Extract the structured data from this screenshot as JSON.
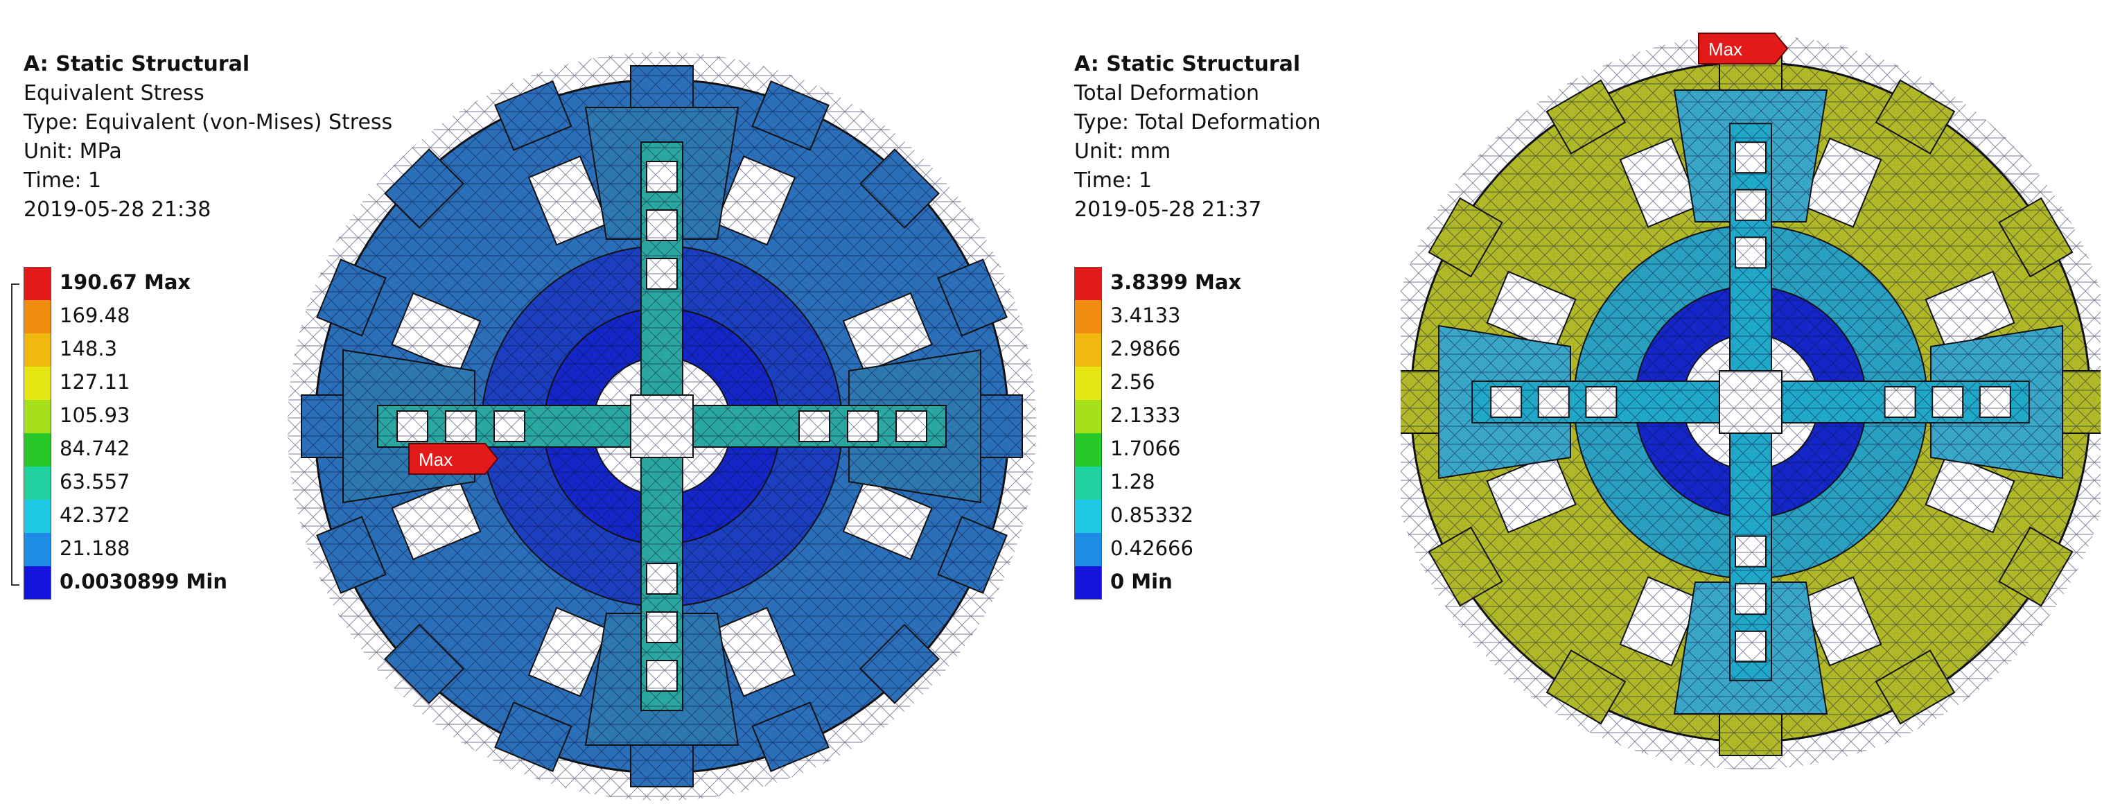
{
  "left": {
    "info": {
      "title": "A: Static Structural",
      "result": "Equivalent Stress",
      "type": "Type: Equivalent (von-Mises) Stress",
      "unit": "Unit: MPa",
      "time": "Time: 1",
      "timestamp": "2019-05-28 21:38"
    },
    "legend": [
      {
        "label": "190.67 Max",
        "color": "#e41a1a",
        "bold": true
      },
      {
        "label": "169.48",
        "color": "#f08c0e",
        "bold": false
      },
      {
        "label": "148.3",
        "color": "#f0b90e",
        "bold": false
      },
      {
        "label": "127.11",
        "color": "#e6e614",
        "bold": false
      },
      {
        "label": "105.93",
        "color": "#a6e01a",
        "bold": false
      },
      {
        "label": "84.742",
        "color": "#28c828",
        "bold": false
      },
      {
        "label": "63.557",
        "color": "#20d2a0",
        "bold": false
      },
      {
        "label": "42.372",
        "color": "#20c8e6",
        "bold": false
      },
      {
        "label": "21.188",
        "color": "#1e8ce6",
        "bold": false
      },
      {
        "label": "0.0030899 Min",
        "color": "#1414dc",
        "bold": true
      }
    ],
    "max_flag": "Max",
    "colors": {
      "outer": "#2a6fb8",
      "mid": "#1c3fbf",
      "inner": "#1526c8",
      "beam": "#2aa8a0"
    }
  },
  "right": {
    "info": {
      "title": "A: Static Structural",
      "result": "Total Deformation",
      "type": "Type: Total Deformation",
      "unit": "Unit: mm",
      "time": "Time: 1",
      "timestamp": "2019-05-28 21:37"
    },
    "legend": [
      {
        "label": "3.8399 Max",
        "color": "#e41a1a",
        "bold": true
      },
      {
        "label": "3.4133",
        "color": "#f08c0e",
        "bold": false
      },
      {
        "label": "2.9866",
        "color": "#f0b90e",
        "bold": false
      },
      {
        "label": "2.56",
        "color": "#e6e614",
        "bold": false
      },
      {
        "label": "2.1333",
        "color": "#a6e01a",
        "bold": false
      },
      {
        "label": "1.7066",
        "color": "#28c828",
        "bold": false
      },
      {
        "label": "1.28",
        "color": "#20d2a0",
        "bold": false
      },
      {
        "label": "0.85332",
        "color": "#20c8e6",
        "bold": false
      },
      {
        "label": "0.42666",
        "color": "#1e8ce6",
        "bold": false
      },
      {
        "label": "0 Min",
        "color": "#1414dc",
        "bold": true
      }
    ],
    "max_flag": "Max",
    "colors": {
      "outer": "#b0b828",
      "mid": "#2aa0c0",
      "inner": "#1426c8",
      "beam": "#20a8c8"
    }
  }
}
